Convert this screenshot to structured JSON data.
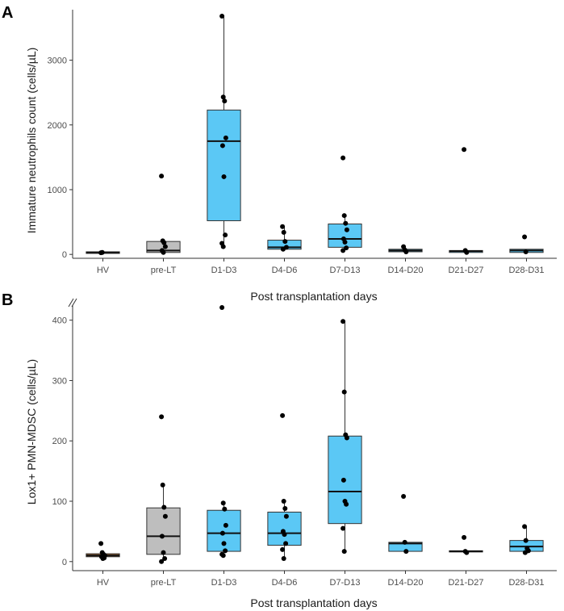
{
  "figure": {
    "panels": [
      "A",
      "B"
    ]
  },
  "colors": {
    "box_blue": "#5bc8f5",
    "box_grey": "#bebebe",
    "box_brown": "#a0622d",
    "axis": "#333333",
    "point": "#000000"
  },
  "chart_data": [
    {
      "panel": "A",
      "type": "box",
      "title": "",
      "xlabel": "Post transplantation days",
      "ylabel": "Immature neutrophils count (cells/µL)",
      "ylim": [
        -60,
        3780
      ],
      "yticks": [
        0,
        1000,
        2000,
        3000
      ],
      "ytick_labels": [
        "0",
        "1000",
        "2000",
        "3000"
      ],
      "categories": [
        "HV",
        "pre-LT",
        "D1-D3",
        "D4-D6",
        "D7-D13",
        "D14-D20",
        "D21-D27",
        "D28-D31"
      ],
      "boxes": [
        {
          "category": "HV",
          "q1": 15,
          "median": 30,
          "q3": 40,
          "whisker_low": 15,
          "whisker_high": 40,
          "fill": "grey",
          "points": [
            25,
            30
          ]
        },
        {
          "category": "pre-LT",
          "q1": 30,
          "median": 60,
          "q3": 200,
          "whisker_low": 20,
          "whisker_high": 200,
          "fill": "grey",
          "points": [
            1210,
            210,
            180,
            120,
            60,
            30
          ]
        },
        {
          "category": "D1-D3",
          "q1": 520,
          "median": 1750,
          "q3": 2230,
          "whisker_low": 120,
          "whisker_high": 3680,
          "fill": "blue",
          "points": [
            3680,
            2430,
            2370,
            1800,
            1680,
            1200,
            300,
            170,
            120
          ]
        },
        {
          "category": "D4-D6",
          "q1": 80,
          "median": 110,
          "q3": 220,
          "whisker_low": 70,
          "whisker_high": 430,
          "fill": "blue",
          "points": [
            430,
            340,
            200,
            110,
            80
          ]
        },
        {
          "category": "D7-D13",
          "q1": 110,
          "median": 240,
          "q3": 470,
          "whisker_low": 50,
          "whisker_high": 600,
          "fill": "blue",
          "points": [
            1490,
            600,
            480,
            380,
            240,
            190,
            100,
            60
          ]
        },
        {
          "category": "D14-D20",
          "q1": 40,
          "median": 60,
          "q3": 80,
          "whisker_low": 30,
          "whisker_high": 120,
          "fill": "blue",
          "points": [
            120,
            70,
            40
          ]
        },
        {
          "category": "D21-D27",
          "q1": 30,
          "median": 50,
          "q3": 60,
          "whisker_low": 20,
          "whisker_high": 60,
          "fill": "blue",
          "points": [
            1620,
            60,
            30
          ]
        },
        {
          "category": "D28-D31",
          "q1": 30,
          "median": 60,
          "q3": 80,
          "whisker_low": 30,
          "whisker_high": 80,
          "fill": "blue",
          "points": [
            270,
            40
          ]
        }
      ]
    },
    {
      "panel": "B",
      "type": "box",
      "title": "",
      "xlabel": "Post transplantation days",
      "ylabel": "Lox1+ PMN-MDSC (cells/µL)",
      "ylim": [
        -15,
        425
      ],
      "axis_break": "top",
      "yticks": [
        0,
        100,
        200,
        300,
        400
      ],
      "ytick_labels": [
        "0",
        "100",
        "200",
        "300",
        "400"
      ],
      "categories": [
        "HV",
        "pre-LT",
        "D1-D3",
        "D4-D6",
        "D7-D13",
        "D14-D20",
        "D21-D27",
        "D28-D31"
      ],
      "boxes": [
        {
          "category": "HV",
          "q1": 8,
          "median": 10,
          "q3": 13,
          "whisker_low": 5,
          "whisker_high": 15,
          "fill": "brown",
          "points": [
            30,
            15,
            12,
            10,
            8,
            5,
            6
          ]
        },
        {
          "category": "pre-LT",
          "q1": 12,
          "median": 42,
          "q3": 89,
          "whisker_low": 0,
          "whisker_high": 127,
          "fill": "grey",
          "points": [
            240,
            127,
            90,
            75,
            42,
            15,
            5,
            0
          ]
        },
        {
          "category": "D1-D3",
          "q1": 17,
          "median": 47,
          "q3": 85,
          "whisker_low": 10,
          "whisker_high": 97,
          "fill": "blue",
          "points": [
            421,
            97,
            87,
            60,
            47,
            30,
            18,
            12,
            10
          ]
        },
        {
          "category": "D4-D6",
          "q1": 27,
          "median": 47,
          "q3": 82,
          "whisker_low": 5,
          "whisker_high": 100,
          "fill": "blue",
          "points": [
            242,
            100,
            88,
            75,
            50,
            45,
            30,
            20,
            5
          ]
        },
        {
          "category": "D7-D13",
          "q1": 63,
          "median": 116,
          "q3": 208,
          "whisker_low": 17,
          "whisker_high": 398,
          "fill": "blue",
          "points": [
            398,
            281,
            210,
            205,
            135,
            100,
            95,
            55,
            17
          ]
        },
        {
          "category": "D14-D20",
          "q1": 17,
          "median": 30,
          "q3": 32,
          "whisker_low": 17,
          "whisker_high": 32,
          "fill": "blue",
          "points": [
            108,
            32,
            17
          ]
        },
        {
          "category": "D21-D27",
          "q1": 16,
          "median": 17,
          "q3": 18,
          "whisker_low": 15,
          "whisker_high": 18,
          "fill": "blue",
          "points": [
            40,
            17,
            15
          ]
        },
        {
          "category": "D28-D31",
          "q1": 17,
          "median": 25,
          "q3": 35,
          "whisker_low": 15,
          "whisker_high": 58,
          "fill": "blue",
          "points": [
            58,
            35,
            22,
            18,
            15
          ]
        }
      ]
    }
  ]
}
